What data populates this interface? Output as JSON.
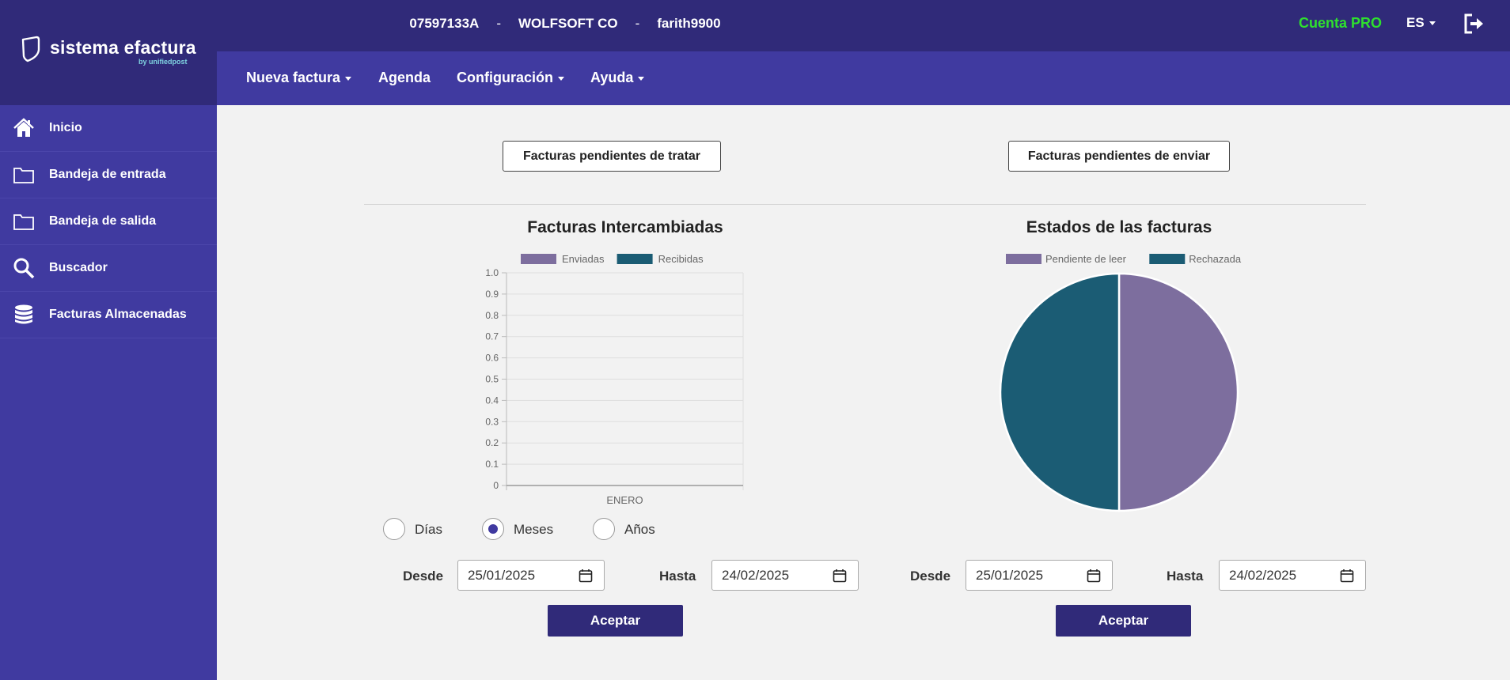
{
  "brand": {
    "name": "sistema efactura",
    "sub": "by unifiedpost"
  },
  "header": {
    "account_id": "07597133A",
    "separator": "-",
    "company": "WOLFSOFT CO",
    "user": "farith9900",
    "account_type": "Cuenta PRO",
    "language": "ES",
    "icons": {
      "logout": "logout-icon"
    }
  },
  "nav": {
    "items": [
      {
        "label": "Nueva factura",
        "dropdown": true
      },
      {
        "label": "Agenda",
        "dropdown": false
      },
      {
        "label": "Configuración",
        "dropdown": true
      },
      {
        "label": "Ayuda",
        "dropdown": true
      }
    ]
  },
  "sidebar": {
    "items": [
      {
        "label": "Inicio",
        "icon": "home-icon"
      },
      {
        "label": "Bandeja de entrada",
        "icon": "folder-icon"
      },
      {
        "label": "Bandeja de salida",
        "icon": "folder-icon"
      },
      {
        "label": "Buscador",
        "icon": "search-icon"
      },
      {
        "label": "Facturas Almacenadas",
        "icon": "database-icon"
      }
    ]
  },
  "main": {
    "btn_pending_process": "Facturas pendientes de tratar",
    "btn_pending_send": "Facturas pendientes de enviar",
    "left": {
      "radios": [
        {
          "label": "Días",
          "checked": false
        },
        {
          "label": "Meses",
          "checked": true
        },
        {
          "label": "Años",
          "checked": false
        }
      ],
      "from_label": "Desde",
      "from_value": "25/01/2025",
      "to_label": "Hasta",
      "to_value": "24/02/2025",
      "accept": "Aceptar"
    },
    "right": {
      "from_label": "Desde",
      "from_value": "25/01/2025",
      "to_label": "Hasta",
      "to_value": "24/02/2025",
      "accept": "Aceptar"
    }
  },
  "colors": {
    "header": "#302a79",
    "nav": "#403aa0",
    "pro": "#2ee02e",
    "series_sent": "#7d6e9e",
    "series_received": "#1b5c74"
  },
  "chart_data": [
    {
      "type": "bar",
      "title": "Facturas Intercambiadas",
      "categories": [
        "ENERO"
      ],
      "series": [
        {
          "name": "Enviadas",
          "values": [
            0
          ],
          "color": "#7d6e9e"
        },
        {
          "name": "Recibidas",
          "values": [
            0
          ],
          "color": "#1b5c74"
        }
      ],
      "ylim": [
        0,
        1
      ],
      "yticks": [
        "1.0",
        "0.9",
        "0.8",
        "0.7",
        "0.6",
        "0.5",
        "0.4",
        "0.3",
        "0.2",
        "0.1",
        "0"
      ],
      "grid": true,
      "legend": "top"
    },
    {
      "type": "pie",
      "title": "Estados de las facturas",
      "slices": [
        {
          "name": "Pendiente de leer",
          "value": 1,
          "color": "#7d6e9e"
        },
        {
          "name": "Rechazada",
          "value": 1,
          "color": "#1b5c74"
        }
      ],
      "legend": "top"
    }
  ]
}
